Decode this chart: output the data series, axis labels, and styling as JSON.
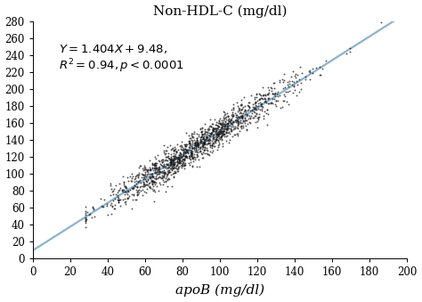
{
  "title": "Non-HDL-C (mg/dl)",
  "xlabel": "apoB (mg/dl)",
  "xlim": [
    0,
    200
  ],
  "ylim": [
    0,
    280
  ],
  "xticks": [
    0,
    20,
    40,
    60,
    80,
    100,
    120,
    140,
    160,
    180,
    200
  ],
  "yticks": [
    0,
    20,
    40,
    60,
    80,
    100,
    120,
    140,
    160,
    180,
    200,
    220,
    240,
    260,
    280
  ],
  "slope": 1.404,
  "intercept": 9.48,
  "r2": 0.94,
  "line_color": "#8ab4d0",
  "dot_color": "#1a1a1a",
  "background_color": "#ffffff",
  "n_points": 1500,
  "x_mean": 88,
  "x_std": 25,
  "dot_size": 1.8,
  "dot_alpha": 0.75,
  "title_fontsize": 11,
  "label_fontsize": 11,
  "tick_fontsize": 8.5,
  "annot_fontsize": 9.5,
  "fig_width": 4.74,
  "fig_height": 3.39,
  "fig_dpi": 100
}
